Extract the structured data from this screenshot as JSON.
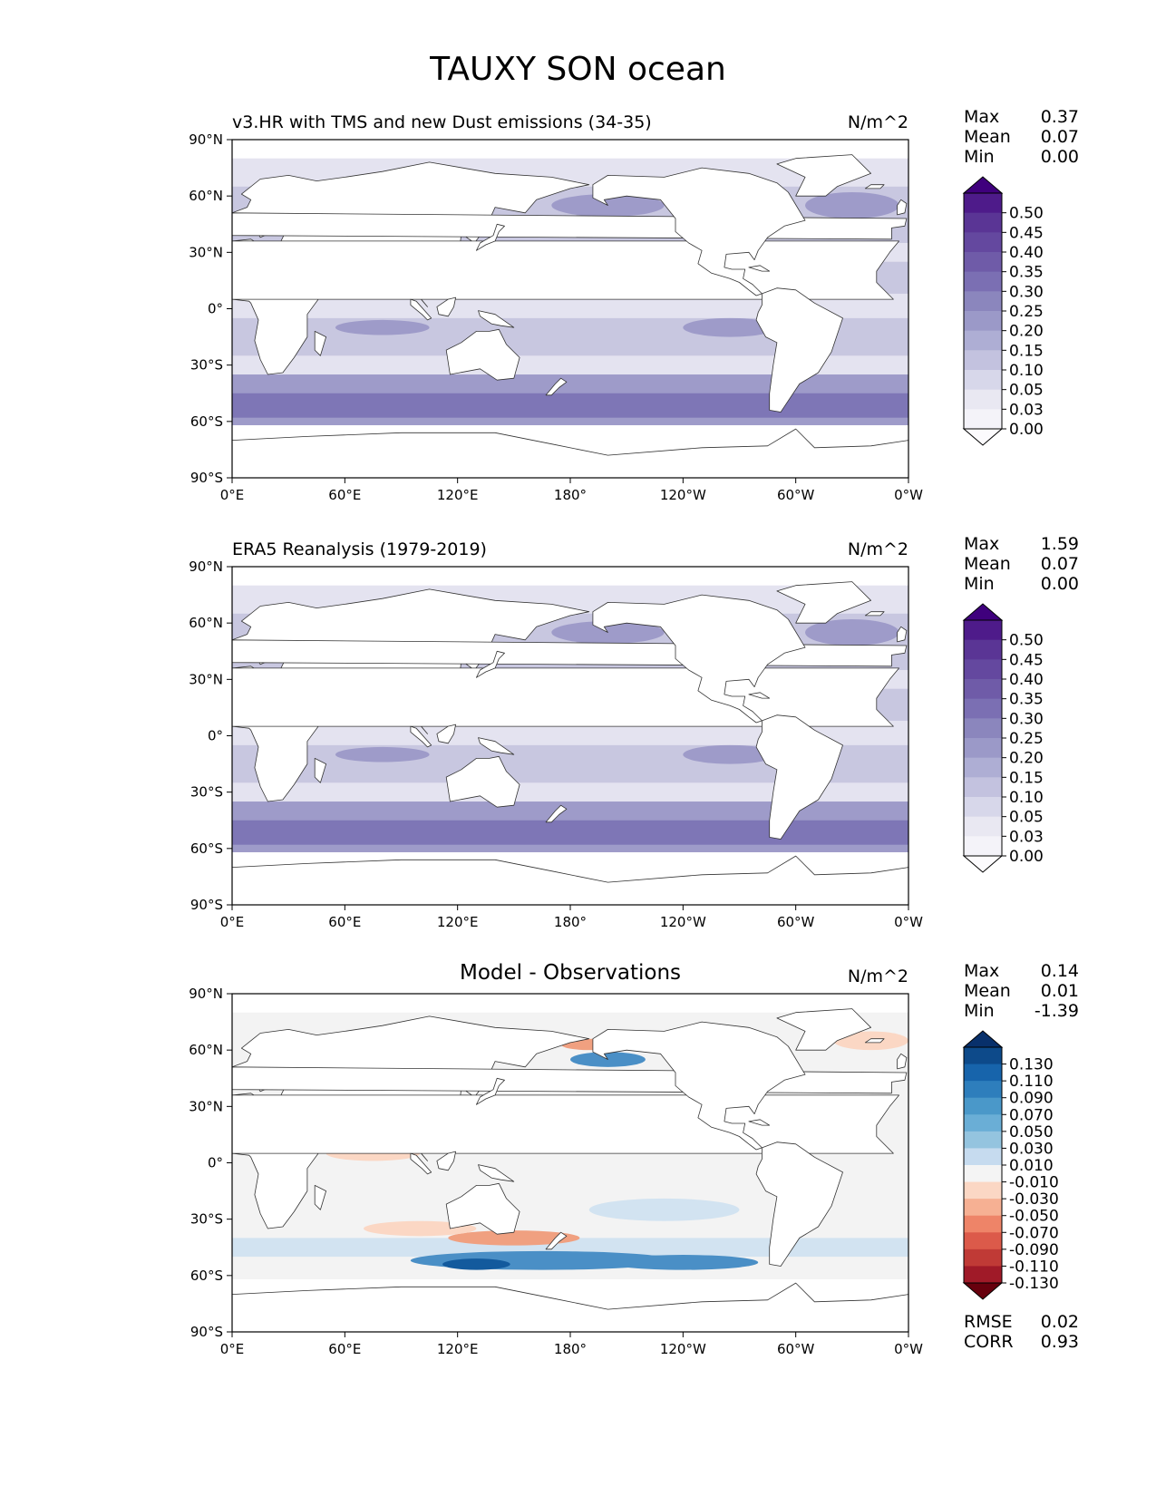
{
  "figure": {
    "title": "TAUXY SON ocean"
  },
  "axes": {
    "lat_ticks": [
      "90°N",
      "60°N",
      "30°N",
      "0°",
      "30°S",
      "60°S",
      "90°S"
    ],
    "lon_ticks": [
      "0°E",
      "60°E",
      "120°E",
      "180°",
      "120°W",
      "60°W",
      "0°W"
    ]
  },
  "panels": [
    {
      "title": "v3.HR with TMS and new Dust emissions (34-35)",
      "units": "N/m^2",
      "stats": [
        {
          "label": "Max",
          "value": "0.37"
        },
        {
          "label": "Mean",
          "value": "0.07"
        },
        {
          "label": "Min",
          "value": "0.00"
        }
      ],
      "colorbar": {
        "levels": [
          "0.50",
          "0.45",
          "0.40",
          "0.35",
          "0.30",
          "0.25",
          "0.20",
          "0.15",
          "0.10",
          "0.05",
          "0.03",
          "0.00"
        ],
        "colors": [
          "#3f007d",
          "#4e1b8a",
          "#5a3595",
          "#64489f",
          "#6f5ba8",
          "#7b6fb3",
          "#8b86bd",
          "#9b99c8",
          "#aeaed4",
          "#c3c2df",
          "#d7d7ea",
          "#e9e8f2",
          "#f4f3f9",
          "#fcfbfd"
        ]
      }
    },
    {
      "title": "ERA5 Reanalysis (1979-2019)",
      "units": "N/m^2",
      "stats": [
        {
          "label": "Max",
          "value": "1.59"
        },
        {
          "label": "Mean",
          "value": "0.07"
        },
        {
          "label": "Min",
          "value": "0.00"
        }
      ],
      "colorbar": {
        "levels": [
          "0.50",
          "0.45",
          "0.40",
          "0.35",
          "0.30",
          "0.25",
          "0.20",
          "0.15",
          "0.10",
          "0.05",
          "0.03",
          "0.00"
        ],
        "colors": [
          "#3f007d",
          "#4e1b8a",
          "#5a3595",
          "#64489f",
          "#6f5ba8",
          "#7b6fb3",
          "#8b86bd",
          "#9b99c8",
          "#aeaed4",
          "#c3c2df",
          "#d7d7ea",
          "#e9e8f2",
          "#f4f3f9",
          "#fcfbfd"
        ]
      }
    },
    {
      "title": "Model - Observations",
      "units": "N/m^2",
      "stats": [
        {
          "label": "Max",
          "value": "0.14"
        },
        {
          "label": "Mean",
          "value": "0.01"
        },
        {
          "label": "Min",
          "value": "-1.39"
        }
      ],
      "colorbar": {
        "levels": [
          "0.130",
          "0.110",
          "0.090",
          "0.070",
          "0.050",
          "0.030",
          "0.010",
          "-0.010",
          "-0.030",
          "-0.050",
          "-0.070",
          "-0.090",
          "-0.110",
          "-0.130"
        ],
        "colors": [
          "#08306b",
          "#0d4a8a",
          "#1764ab",
          "#2e7ebc",
          "#4a98c9",
          "#6aaed6",
          "#94c4df",
          "#c6dbef",
          "#f4f4f4",
          "#fbd7c4",
          "#f6b093",
          "#ee8468",
          "#dc5a4a",
          "#c03a36",
          "#a01a28",
          "#67000d"
        ]
      },
      "metrics": [
        {
          "label": "RMSE",
          "value": "0.02"
        },
        {
          "label": "CORR",
          "value": "0.93"
        }
      ]
    }
  ],
  "palette": {
    "land": "#ffffff",
    "coast": "#333333",
    "purple_bg": "#e4e3f0",
    "purple_mid": "#c8c7e0",
    "purple_strong": "#9e9bc9",
    "purple_dark": "#7e76b6",
    "diff_bg": "#f3f3f3",
    "diff_blue_light": "#d2e3f1",
    "diff_blue": "#4a8fc6",
    "diff_blue_dark": "#135a9d",
    "diff_red_light": "#fbd7c4",
    "diff_red": "#f0a080"
  }
}
